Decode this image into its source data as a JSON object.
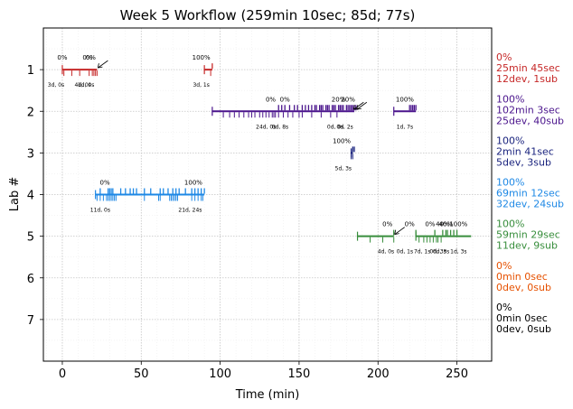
{
  "chart_data": {
    "type": "line",
    "title": "Week 5 Workflow (259min 10sec; 85d; 77s)",
    "xlabel": "Time (min)",
    "ylabel": "Lab #",
    "xlim": [
      -12,
      272
    ],
    "ylim": [
      8,
      0
    ],
    "x_ticks": [
      0,
      50,
      100,
      150,
      200,
      250
    ],
    "y_ticks": [
      1,
      2,
      3,
      4,
      5,
      6,
      7
    ],
    "grid": true,
    "labs": [
      {
        "lab": 1,
        "color": "#c62828",
        "side": [
          "0%",
          "25min 45sec",
          "12dev, 1sub"
        ],
        "segments": [
          [
            0,
            22
          ],
          [
            90,
            95
          ]
        ],
        "dev_ticks": [
          1,
          6,
          11,
          17,
          19,
          20,
          21,
          22,
          94
        ],
        "sub_ticks": [
          95
        ],
        "pct_labels": [
          {
            "x": 0,
            "text": "0%"
          },
          {
            "x": 16,
            "text": "0%"
          },
          {
            "x": 18,
            "text": "0%"
          },
          {
            "x": 88,
            "text": "100%"
          }
        ],
        "time_labels": [
          {
            "x": -4,
            "text": "3d, 0s"
          },
          {
            "x": 13,
            "text": "4d, 0s"
          },
          {
            "x": 15,
            "text": "1d, 0s"
          },
          {
            "x": 88,
            "text": "3d, 1s"
          }
        ],
        "arrows": [
          {
            "x": 22
          }
        ]
      },
      {
        "lab": 2,
        "color": "#4a148c",
        "side": [
          "100%",
          "102min 3sec",
          "25dev, 40sub"
        ],
        "segments": [
          [
            95,
            185
          ],
          [
            210,
            224
          ]
        ],
        "dev_ticks": [
          102,
          106,
          109,
          112,
          115,
          118,
          120,
          122,
          125,
          127,
          129,
          131,
          133,
          134,
          135,
          137,
          140,
          143,
          146,
          150,
          152,
          158,
          164,
          170,
          174
        ],
        "sub_ticks": [
          137,
          139,
          141,
          144,
          147,
          149,
          152,
          154,
          156,
          158,
          160,
          161,
          163,
          164,
          165,
          167,
          168,
          169,
          171,
          172,
          173,
          175,
          176,
          177,
          178,
          180,
          181,
          182,
          183,
          184,
          185,
          186,
          220,
          221,
          222,
          223,
          224
        ],
        "pct_labels": [
          {
            "x": 132,
            "text": "0%"
          },
          {
            "x": 141,
            "text": "0%"
          },
          {
            "x": 175,
            "text": "20%"
          },
          {
            "x": 181,
            "text": "20%"
          },
          {
            "x": 217,
            "text": "100%"
          }
        ],
        "time_labels": [
          {
            "x": 129,
            "text": "24d, 0s"
          },
          {
            "x": 138,
            "text": "0d, 8s"
          },
          {
            "x": 173,
            "text": "0d, 0s"
          },
          {
            "x": 179,
            "text": "0d, 2s"
          },
          {
            "x": 217,
            "text": "1d, 7s"
          }
        ],
        "arrows": [
          {
            "x": 184
          },
          {
            "x": 186
          }
        ]
      },
      {
        "lab": 3,
        "color": "#1a237e",
        "side": [
          "100%",
          "2min 41sec",
          "5dev, 3sub"
        ],
        "segments": [
          [
            183,
            184
          ]
        ],
        "dev_ticks": [
          183,
          184
        ],
        "sub_ticks": [
          184,
          185
        ],
        "pct_labels": [
          {
            "x": 177,
            "text": "100%"
          }
        ],
        "time_labels": [
          {
            "x": 178,
            "text": "5d, 3s"
          }
        ],
        "arrows": []
      },
      {
        "lab": 4,
        "color": "#1e88e5",
        "side": [
          "100%",
          "69min 12sec",
          "32dev, 24sub"
        ],
        "segments": [
          [
            21,
            90
          ]
        ],
        "dev_ticks": [
          22,
          24,
          26,
          28,
          29,
          30,
          31,
          32,
          33,
          34,
          52,
          61,
          62,
          68,
          69,
          70,
          71,
          72,
          73,
          82,
          84,
          86,
          88,
          89
        ],
        "sub_ticks": [
          24,
          29,
          30,
          31,
          32,
          37,
          40,
          43,
          45,
          47,
          52,
          56,
          62,
          64,
          67,
          70,
          72,
          74,
          78,
          82,
          84,
          86,
          88,
          90
        ],
        "pct_labels": [
          {
            "x": 27,
            "text": "0%"
          },
          {
            "x": 83,
            "text": "100%"
          }
        ],
        "time_labels": [
          {
            "x": 24,
            "text": "11d, 0s"
          },
          {
            "x": 81,
            "text": "21d, 24s"
          }
        ],
        "arrows": []
      },
      {
        "lab": 5,
        "color": "#388e3c",
        "side": [
          "100%",
          "59min 29sec",
          "11dev, 9sub"
        ],
        "segments": [
          [
            187,
            210
          ],
          [
            224,
            259
          ]
        ],
        "dev_ticks": [
          195,
          203,
          210,
          226,
          229,
          231,
          233,
          235,
          237,
          238,
          240
        ],
        "sub_ticks": [
          210,
          224,
          236,
          241,
          243,
          244,
          246,
          248,
          250
        ],
        "pct_labels": [
          {
            "x": 206,
            "text": "0%"
          },
          {
            "x": 220,
            "text": "0%"
          },
          {
            "x": 233,
            "text": "0%"
          },
          {
            "x": 241,
            "text": "40%"
          },
          {
            "x": 243,
            "text": "40%"
          },
          {
            "x": 251,
            "text": "100%"
          }
        ],
        "time_labels": [
          {
            "x": 205,
            "text": "4d, 0s"
          },
          {
            "x": 217,
            "text": "0d, 1s"
          },
          {
            "x": 228,
            "text": "7d, 1s"
          },
          {
            "x": 238,
            "text": "0d, 3s"
          },
          {
            "x": 240,
            "text": "0d, 3s"
          },
          {
            "x": 251,
            "text": "1d, 3s"
          }
        ],
        "arrows": [
          {
            "x": 210
          }
        ]
      },
      {
        "lab": 6,
        "color": "#e65100",
        "side": [
          "0%",
          "0min 0sec",
          "0dev, 0sub"
        ],
        "segments": [],
        "dev_ticks": [],
        "sub_ticks": [],
        "pct_labels": [],
        "time_labels": [],
        "arrows": []
      },
      {
        "lab": 7,
        "color": "#000000",
        "side": [
          "0%",
          "0min 0sec",
          "0dev, 0sub"
        ],
        "segments": [],
        "dev_ticks": [],
        "sub_ticks": [],
        "pct_labels": [],
        "time_labels": [],
        "arrows": []
      }
    ]
  }
}
